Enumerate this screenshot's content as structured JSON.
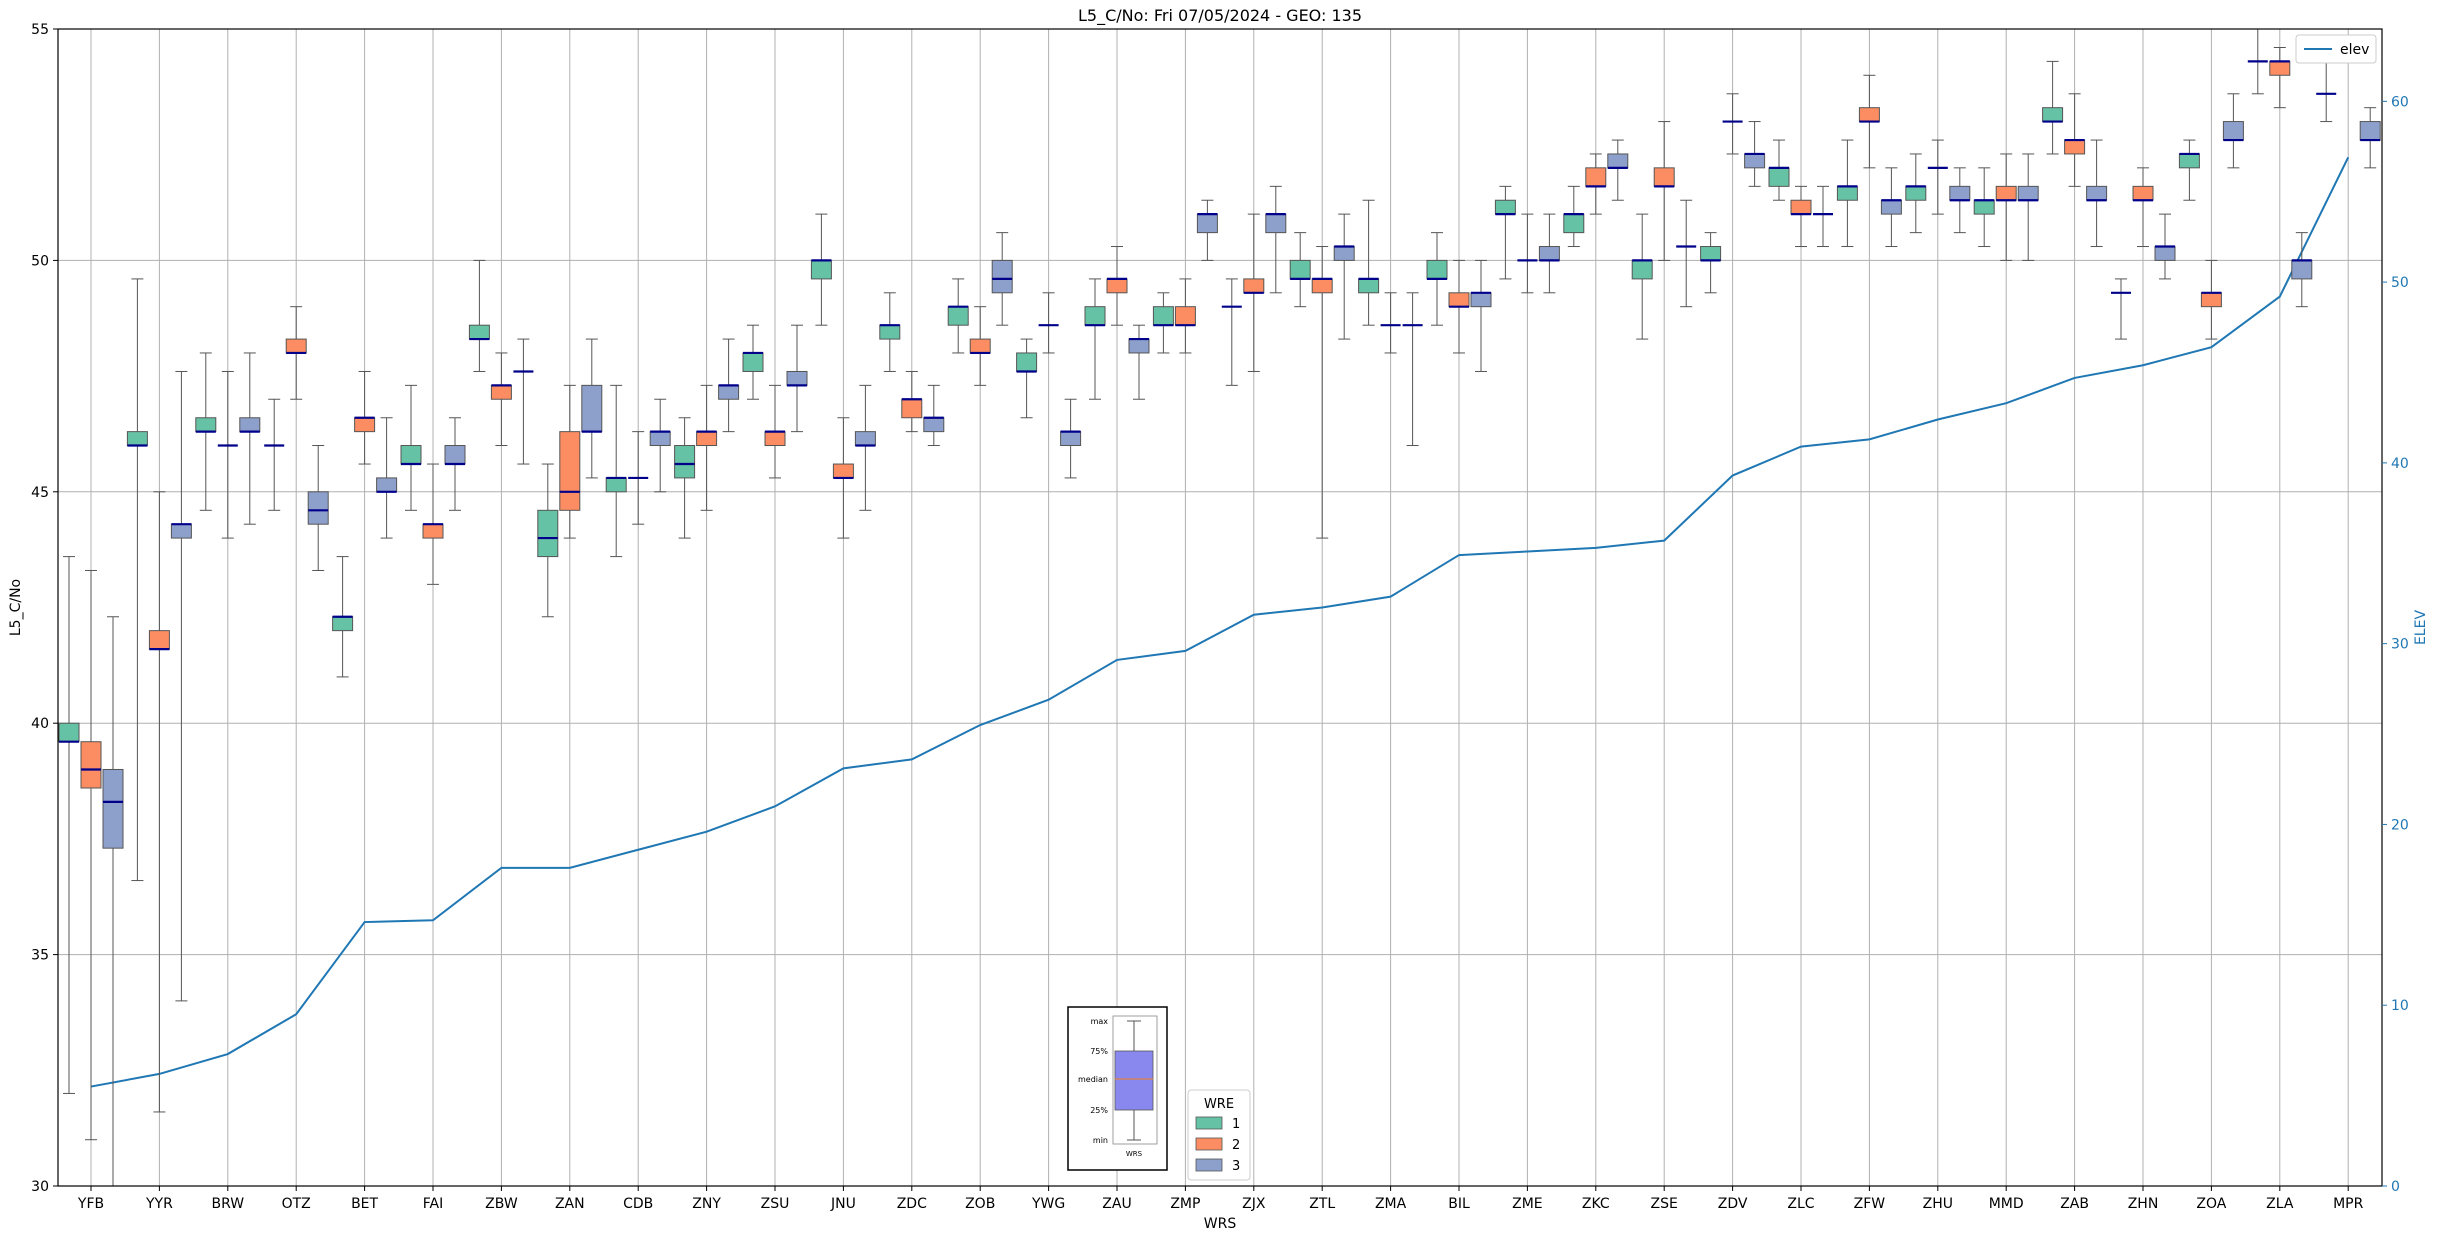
{
  "chart_data": {
    "type": "box",
    "title": "L5_C/No: Fri 07/05/2024 - GEO: 135",
    "xlabel": "WRS",
    "ylabel": "L5_C/No",
    "y2label": "ELEV",
    "ylim": [
      30,
      55
    ],
    "y2lim": [
      0,
      64
    ],
    "yticks": [
      30,
      35,
      40,
      45,
      50,
      55
    ],
    "y2ticks": [
      0,
      10,
      20,
      30,
      40,
      50,
      60
    ],
    "grid": true,
    "categories": [
      "YFB",
      "YYR",
      "BRW",
      "OTZ",
      "BET",
      "FAI",
      "ZBW",
      "ZAN",
      "CDB",
      "ZNY",
      "ZSU",
      "JNU",
      "ZDC",
      "ZOB",
      "YWG",
      "ZAU",
      "ZMP",
      "ZJX",
      "ZTL",
      "ZMA",
      "BIL",
      "ZME",
      "ZKC",
      "ZSE",
      "ZDV",
      "ZLC",
      "ZFW",
      "ZHU",
      "MMD",
      "ZAB",
      "ZHN",
      "ZOA",
      "ZLA",
      "MPR"
    ],
    "wre_colors": {
      "1": "#66c2a5",
      "2": "#fc8d62",
      "3": "#8da0cb"
    },
    "median_color": "#00008b",
    "boxes": [
      {
        "station": "YFB",
        "wre": 1,
        "min": 32.0,
        "q1": 39.6,
        "median": 39.6,
        "q3": 40.0,
        "max": 43.6
      },
      {
        "station": "YFB",
        "wre": 2,
        "min": 31.0,
        "q1": 38.6,
        "median": 39.0,
        "q3": 39.6,
        "max": 43.3
      },
      {
        "station": "YFB",
        "wre": 3,
        "min": 30.0,
        "q1": 37.3,
        "median": 38.3,
        "q3": 39.0,
        "max": 42.3
      },
      {
        "station": "YYR",
        "wre": 1,
        "min": 36.6,
        "q1": 46.0,
        "median": 46.0,
        "q3": 46.3,
        "max": 49.6
      },
      {
        "station": "YYR",
        "wre": 2,
        "min": 31.6,
        "q1": 41.6,
        "median": 41.6,
        "q3": 42.0,
        "max": 45.0
      },
      {
        "station": "YYR",
        "wre": 3,
        "min": 34.0,
        "q1": 44.0,
        "median": 44.3,
        "q3": 44.3,
        "max": 47.6
      },
      {
        "station": "BRW",
        "wre": 1,
        "min": 44.6,
        "q1": 46.3,
        "median": 46.3,
        "q3": 46.6,
        "max": 48.0
      },
      {
        "station": "BRW",
        "wre": 2,
        "min": 44.0,
        "q1": 46.0,
        "median": 46.0,
        "q3": 46.0,
        "max": 47.6
      },
      {
        "station": "BRW",
        "wre": 3,
        "min": 44.3,
        "q1": 46.3,
        "median": 46.3,
        "q3": 46.6,
        "max": 48.0
      },
      {
        "station": "OTZ",
        "wre": 1,
        "min": 44.6,
        "q1": 46.0,
        "median": 46.0,
        "q3": 46.0,
        "max": 47.0
      },
      {
        "station": "OTZ",
        "wre": 2,
        "min": 47.0,
        "q1": 48.0,
        "median": 48.0,
        "q3": 48.3,
        "max": 49.0
      },
      {
        "station": "OTZ",
        "wre": 3,
        "min": 43.3,
        "q1": 44.3,
        "median": 44.6,
        "q3": 45.0,
        "max": 46.0
      },
      {
        "station": "BET",
        "wre": 1,
        "min": 41.0,
        "q1": 42.0,
        "median": 42.3,
        "q3": 42.3,
        "max": 43.6
      },
      {
        "station": "BET",
        "wre": 2,
        "min": 45.6,
        "q1": 46.3,
        "median": 46.6,
        "q3": 46.6,
        "max": 47.6
      },
      {
        "station": "BET",
        "wre": 3,
        "min": 44.0,
        "q1": 45.0,
        "median": 45.0,
        "q3": 45.3,
        "max": 46.6
      },
      {
        "station": "FAI",
        "wre": 1,
        "min": 44.6,
        "q1": 45.6,
        "median": 45.6,
        "q3": 46.0,
        "max": 47.3
      },
      {
        "station": "FAI",
        "wre": 2,
        "min": 43.0,
        "q1": 44.0,
        "median": 44.3,
        "q3": 44.3,
        "max": 45.6
      },
      {
        "station": "FAI",
        "wre": 3,
        "min": 44.6,
        "q1": 45.6,
        "median": 45.6,
        "q3": 46.0,
        "max": 46.6
      },
      {
        "station": "ZBW",
        "wre": 1,
        "min": 47.6,
        "q1": 48.3,
        "median": 48.3,
        "q3": 48.6,
        "max": 50.0
      },
      {
        "station": "ZBW",
        "wre": 2,
        "min": 46.0,
        "q1": 47.0,
        "median": 47.3,
        "q3": 47.3,
        "max": 48.0
      },
      {
        "station": "ZBW",
        "wre": 3,
        "min": 45.6,
        "q1": 47.6,
        "median": 47.6,
        "q3": 47.6,
        "max": 48.3
      },
      {
        "station": "ZAN",
        "wre": 1,
        "min": 42.3,
        "q1": 43.6,
        "median": 44.0,
        "q3": 44.6,
        "max": 45.6
      },
      {
        "station": "ZAN",
        "wre": 2,
        "min": 44.0,
        "q1": 44.6,
        "median": 45.0,
        "q3": 46.3,
        "max": 47.3
      },
      {
        "station": "ZAN",
        "wre": 3,
        "min": 45.3,
        "q1": 46.3,
        "median": 46.3,
        "q3": 47.3,
        "max": 48.3
      },
      {
        "station": "CDB",
        "wre": 1,
        "min": 43.6,
        "q1": 45.0,
        "median": 45.3,
        "q3": 45.3,
        "max": 47.3
      },
      {
        "station": "CDB",
        "wre": 2,
        "min": 44.3,
        "q1": 45.3,
        "median": 45.3,
        "q3": 45.3,
        "max": 46.3
      },
      {
        "station": "CDB",
        "wre": 3,
        "min": 45.0,
        "q1": 46.0,
        "median": 46.3,
        "q3": 46.3,
        "max": 47.0
      },
      {
        "station": "ZNY",
        "wre": 1,
        "min": 44.0,
        "q1": 45.3,
        "median": 45.6,
        "q3": 46.0,
        "max": 46.6
      },
      {
        "station": "ZNY",
        "wre": 2,
        "min": 44.6,
        "q1": 46.0,
        "median": 46.3,
        "q3": 46.3,
        "max": 47.3
      },
      {
        "station": "ZNY",
        "wre": 3,
        "min": 46.3,
        "q1": 47.0,
        "median": 47.3,
        "q3": 47.3,
        "max": 48.3
      },
      {
        "station": "ZSU",
        "wre": 1,
        "min": 47.0,
        "q1": 47.6,
        "median": 48.0,
        "q3": 48.0,
        "max": 48.6
      },
      {
        "station": "ZSU",
        "wre": 2,
        "min": 45.3,
        "q1": 46.0,
        "median": 46.3,
        "q3": 46.3,
        "max": 47.3
      },
      {
        "station": "ZSU",
        "wre": 3,
        "min": 46.3,
        "q1": 47.3,
        "median": 47.3,
        "q3": 47.6,
        "max": 48.6
      },
      {
        "station": "JNU",
        "wre": 1,
        "min": 48.6,
        "q1": 49.6,
        "median": 50.0,
        "q3": 50.0,
        "max": 51.0
      },
      {
        "station": "JNU",
        "wre": 2,
        "min": 44.0,
        "q1": 45.3,
        "median": 45.3,
        "q3": 45.6,
        "max": 46.6
      },
      {
        "station": "JNU",
        "wre": 3,
        "min": 44.6,
        "q1": 46.0,
        "median": 46.0,
        "q3": 46.3,
        "max": 47.3
      },
      {
        "station": "ZDC",
        "wre": 1,
        "min": 47.6,
        "q1": 48.3,
        "median": 48.6,
        "q3": 48.6,
        "max": 49.3
      },
      {
        "station": "ZDC",
        "wre": 2,
        "min": 46.3,
        "q1": 46.6,
        "median": 47.0,
        "q3": 47.0,
        "max": 47.6
      },
      {
        "station": "ZDC",
        "wre": 3,
        "min": 46.0,
        "q1": 46.3,
        "median": 46.6,
        "q3": 46.6,
        "max": 47.3
      },
      {
        "station": "ZOB",
        "wre": 1,
        "min": 48.0,
        "q1": 48.6,
        "median": 49.0,
        "q3": 49.0,
        "max": 49.6
      },
      {
        "station": "ZOB",
        "wre": 2,
        "min": 47.3,
        "q1": 48.0,
        "median": 48.0,
        "q3": 48.3,
        "max": 49.0
      },
      {
        "station": "ZOB",
        "wre": 3,
        "min": 48.6,
        "q1": 49.3,
        "median": 49.6,
        "q3": 50.0,
        "max": 50.6
      },
      {
        "station": "YWG",
        "wre": 1,
        "min": 46.6,
        "q1": 47.6,
        "median": 47.6,
        "q3": 48.0,
        "max": 48.3
      },
      {
        "station": "YWG",
        "wre": 2,
        "min": 48.0,
        "q1": 48.6,
        "median": 48.6,
        "q3": 48.6,
        "max": 49.3
      },
      {
        "station": "YWG",
        "wre": 3,
        "min": 45.3,
        "q1": 46.0,
        "median": 46.3,
        "q3": 46.3,
        "max": 47.0
      },
      {
        "station": "ZAU",
        "wre": 1,
        "min": 47.0,
        "q1": 48.6,
        "median": 48.6,
        "q3": 49.0,
        "max": 49.6
      },
      {
        "station": "ZAU",
        "wre": 2,
        "min": 48.6,
        "q1": 49.3,
        "median": 49.6,
        "q3": 49.6,
        "max": 50.3
      },
      {
        "station": "ZAU",
        "wre": 3,
        "min": 47.0,
        "q1": 48.0,
        "median": 48.3,
        "q3": 48.3,
        "max": 48.6
      },
      {
        "station": "ZMP",
        "wre": 1,
        "min": 48.0,
        "q1": 48.6,
        "median": 48.6,
        "q3": 49.0,
        "max": 49.3
      },
      {
        "station": "ZMP",
        "wre": 2,
        "min": 48.0,
        "q1": 48.6,
        "median": 48.6,
        "q3": 49.0,
        "max": 49.6
      },
      {
        "station": "ZMP",
        "wre": 3,
        "min": 50.0,
        "q1": 50.6,
        "median": 51.0,
        "q3": 51.0,
        "max": 51.3
      },
      {
        "station": "ZJX",
        "wre": 1,
        "min": 47.3,
        "q1": 49.0,
        "median": 49.0,
        "q3": 49.0,
        "max": 49.6
      },
      {
        "station": "ZJX",
        "wre": 2,
        "min": 47.6,
        "q1": 49.3,
        "median": 49.3,
        "q3": 49.6,
        "max": 51.0
      },
      {
        "station": "ZJX",
        "wre": 3,
        "min": 49.3,
        "q1": 50.6,
        "median": 51.0,
        "q3": 51.0,
        "max": 51.6
      },
      {
        "station": "ZTL",
        "wre": 1,
        "min": 49.0,
        "q1": 49.6,
        "median": 49.6,
        "q3": 50.0,
        "max": 50.6
      },
      {
        "station": "ZTL",
        "wre": 2,
        "min": 44.0,
        "q1": 49.3,
        "median": 49.6,
        "q3": 49.6,
        "max": 50.3
      },
      {
        "station": "ZTL",
        "wre": 3,
        "min": 48.3,
        "q1": 50.0,
        "median": 50.3,
        "q3": 50.3,
        "max": 51.0
      },
      {
        "station": "ZMA",
        "wre": 1,
        "min": 48.6,
        "q1": 49.3,
        "median": 49.6,
        "q3": 49.6,
        "max": 51.3
      },
      {
        "station": "ZMA",
        "wre": 2,
        "min": 48.0,
        "q1": 48.6,
        "median": 48.6,
        "q3": 48.6,
        "max": 49.3
      },
      {
        "station": "ZMA",
        "wre": 3,
        "min": 46.0,
        "q1": 48.6,
        "median": 48.6,
        "q3": 48.6,
        "max": 49.3
      },
      {
        "station": "BIL",
        "wre": 1,
        "min": 48.6,
        "q1": 49.6,
        "median": 49.6,
        "q3": 50.0,
        "max": 50.6
      },
      {
        "station": "BIL",
        "wre": 2,
        "min": 48.0,
        "q1": 49.0,
        "median": 49.0,
        "q3": 49.3,
        "max": 50.0
      },
      {
        "station": "BIL",
        "wre": 3,
        "min": 47.6,
        "q1": 49.0,
        "median": 49.3,
        "q3": 49.3,
        "max": 50.0
      },
      {
        "station": "ZME",
        "wre": 1,
        "min": 49.6,
        "q1": 51.0,
        "median": 51.0,
        "q3": 51.3,
        "max": 51.6
      },
      {
        "station": "ZME",
        "wre": 2,
        "min": 49.3,
        "q1": 50.0,
        "median": 50.0,
        "q3": 50.0,
        "max": 51.0
      },
      {
        "station": "ZME",
        "wre": 3,
        "min": 49.3,
        "q1": 50.0,
        "median": 50.0,
        "q3": 50.3,
        "max": 51.0
      },
      {
        "station": "ZKC",
        "wre": 1,
        "min": 50.3,
        "q1": 50.6,
        "median": 51.0,
        "q3": 51.0,
        "max": 51.6
      },
      {
        "station": "ZKC",
        "wre": 2,
        "min": 51.0,
        "q1": 51.6,
        "median": 51.6,
        "q3": 52.0,
        "max": 52.3
      },
      {
        "station": "ZKC",
        "wre": 3,
        "min": 51.3,
        "q1": 52.0,
        "median": 52.0,
        "q3": 52.3,
        "max": 52.6
      },
      {
        "station": "ZSE",
        "wre": 1,
        "min": 48.3,
        "q1": 49.6,
        "median": 50.0,
        "q3": 50.0,
        "max": 51.0
      },
      {
        "station": "ZSE",
        "wre": 2,
        "min": 50.0,
        "q1": 51.6,
        "median": 51.6,
        "q3": 52.0,
        "max": 53.0
      },
      {
        "station": "ZSE",
        "wre": 3,
        "min": 49.0,
        "q1": 50.3,
        "median": 50.3,
        "q3": 50.3,
        "max": 51.3
      },
      {
        "station": "ZDV",
        "wre": 1,
        "min": 49.3,
        "q1": 50.0,
        "median": 50.0,
        "q3": 50.3,
        "max": 50.6
      },
      {
        "station": "ZDV",
        "wre": 2,
        "min": 52.3,
        "q1": 53.0,
        "median": 53.0,
        "q3": 53.0,
        "max": 53.6
      },
      {
        "station": "ZDV",
        "wre": 3,
        "min": 51.6,
        "q1": 52.0,
        "median": 52.3,
        "q3": 52.3,
        "max": 53.0
      },
      {
        "station": "ZLC",
        "wre": 1,
        "min": 51.3,
        "q1": 51.6,
        "median": 52.0,
        "q3": 52.0,
        "max": 52.6
      },
      {
        "station": "ZLC",
        "wre": 2,
        "min": 50.3,
        "q1": 51.0,
        "median": 51.0,
        "q3": 51.3,
        "max": 51.6
      },
      {
        "station": "ZLC",
        "wre": 3,
        "min": 50.3,
        "q1": 51.0,
        "median": 51.0,
        "q3": 51.0,
        "max": 51.6
      },
      {
        "station": "ZFW",
        "wre": 1,
        "min": 50.3,
        "q1": 51.3,
        "median": 51.6,
        "q3": 51.6,
        "max": 52.6
      },
      {
        "station": "ZFW",
        "wre": 2,
        "min": 52.0,
        "q1": 53.0,
        "median": 53.0,
        "q3": 53.3,
        "max": 54.0
      },
      {
        "station": "ZFW",
        "wre": 3,
        "min": 50.3,
        "q1": 51.0,
        "median": 51.3,
        "q3": 51.3,
        "max": 52.0
      },
      {
        "station": "ZHU",
        "wre": 1,
        "min": 50.6,
        "q1": 51.3,
        "median": 51.6,
        "q3": 51.6,
        "max": 52.3
      },
      {
        "station": "ZHU",
        "wre": 2,
        "min": 51.0,
        "q1": 52.0,
        "median": 52.0,
        "q3": 52.0,
        "max": 52.6
      },
      {
        "station": "ZHU",
        "wre": 3,
        "min": 50.6,
        "q1": 51.3,
        "median": 51.3,
        "q3": 51.6,
        "max": 52.0
      },
      {
        "station": "MMD",
        "wre": 1,
        "min": 50.3,
        "q1": 51.0,
        "median": 51.3,
        "q3": 51.3,
        "max": 52.0
      },
      {
        "station": "MMD",
        "wre": 2,
        "min": 50.0,
        "q1": 51.3,
        "median": 51.3,
        "q3": 51.6,
        "max": 52.3
      },
      {
        "station": "MMD",
        "wre": 3,
        "min": 50.0,
        "q1": 51.3,
        "median": 51.3,
        "q3": 51.6,
        "max": 52.3
      },
      {
        "station": "ZAB",
        "wre": 1,
        "min": 52.3,
        "q1": 53.0,
        "median": 53.0,
        "q3": 53.3,
        "max": 54.3
      },
      {
        "station": "ZAB",
        "wre": 2,
        "min": 51.6,
        "q1": 52.3,
        "median": 52.6,
        "q3": 52.6,
        "max": 53.6
      },
      {
        "station": "ZAB",
        "wre": 3,
        "min": 50.3,
        "q1": 51.3,
        "median": 51.3,
        "q3": 51.6,
        "max": 52.6
      },
      {
        "station": "ZHN",
        "wre": 1,
        "min": 48.3,
        "q1": 49.3,
        "median": 49.3,
        "q3": 49.3,
        "max": 49.6
      },
      {
        "station": "ZHN",
        "wre": 2,
        "min": 50.3,
        "q1": 51.3,
        "median": 51.3,
        "q3": 51.6,
        "max": 52.0
      },
      {
        "station": "ZHN",
        "wre": 3,
        "min": 49.6,
        "q1": 50.0,
        "median": 50.3,
        "q3": 50.3,
        "max": 51.0
      },
      {
        "station": "ZOA",
        "wre": 1,
        "min": 51.3,
        "q1": 52.0,
        "median": 52.3,
        "q3": 52.3,
        "max": 52.6
      },
      {
        "station": "ZOA",
        "wre": 2,
        "min": 48.3,
        "q1": 49.0,
        "median": 49.3,
        "q3": 49.3,
        "max": 50.0
      },
      {
        "station": "ZOA",
        "wre": 3,
        "min": 52.0,
        "q1": 52.6,
        "median": 52.6,
        "q3": 53.0,
        "max": 53.6
      },
      {
        "station": "ZLA",
        "wre": 1,
        "min": 53.6,
        "q1": 54.3,
        "median": 54.3,
        "q3": 54.3,
        "max": 55.0
      },
      {
        "station": "ZLA",
        "wre": 2,
        "min": 53.3,
        "q1": 54.0,
        "median": 54.3,
        "q3": 54.3,
        "max": 54.6
      },
      {
        "station": "ZLA",
        "wre": 3,
        "min": 49.0,
        "q1": 49.6,
        "median": 50.0,
        "q3": 50.0,
        "max": 50.6
      },
      {
        "station": "MPR",
        "wre": 1,
        "min": 53.0,
        "q1": 53.6,
        "median": 53.6,
        "q3": 53.6,
        "max": 54.3
      },
      {
        "station": "MPR",
        "wre": 3,
        "min": 52.0,
        "q1": 52.6,
        "median": 52.6,
        "q3": 53.0,
        "max": 53.3
      }
    ],
    "elev_series": {
      "name": "elev",
      "color": "#1f77b4",
      "x": [
        "YFB",
        "YYR",
        "BRW",
        "OTZ",
        "BET",
        "FAI",
        "ZBW",
        "ZAN",
        "CDB",
        "ZNY",
        "ZSU",
        "JNU",
        "ZDC",
        "ZOB",
        "YWG",
        "ZAU",
        "ZMP",
        "ZJX",
        "ZTL",
        "ZMA",
        "BIL",
        "ZME",
        "ZKC",
        "ZSE",
        "ZDV",
        "ZLC",
        "ZFW",
        "ZHU",
        "MMD",
        "ZAB",
        "ZHN",
        "ZOA",
        "ZLA",
        "MPR"
      ],
      "values": [
        5.5,
        6.2,
        7.3,
        9.5,
        14.6,
        14.7,
        17.6,
        17.6,
        18.6,
        19.6,
        21.0,
        23.1,
        23.6,
        25.5,
        26.9,
        29.1,
        29.6,
        31.6,
        32.0,
        32.6,
        34.9,
        35.1,
        35.3,
        35.7,
        39.3,
        40.9,
        41.3,
        42.4,
        43.3,
        44.7,
        45.4,
        46.4,
        49.2,
        56.9
      ]
    },
    "legend_wre": {
      "title": "WRE",
      "entries": [
        "1",
        "2",
        "3"
      ],
      "placement": "bottom-center"
    },
    "legend_elev": {
      "entries": [
        "elev"
      ],
      "placement": "top-right"
    },
    "key_box": {
      "labels": [
        "max",
        "75%",
        "median",
        "25%",
        "min"
      ],
      "xlabel": "WRS",
      "fill": "#8888ee",
      "median_color": "#e08040"
    }
  }
}
